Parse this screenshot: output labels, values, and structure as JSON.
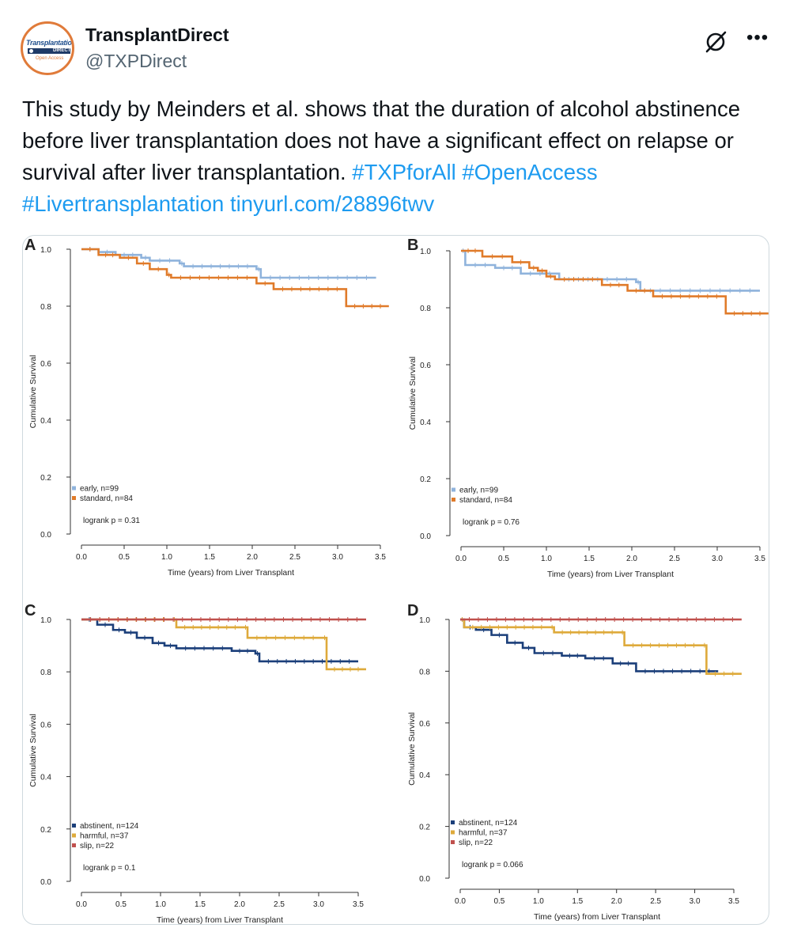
{
  "account": {
    "name": "TransplantDirect",
    "handle": "@TXPDirect",
    "avatar": {
      "line1": "Transplantation",
      "line2": "DIRECT",
      "line3": "Open Access"
    }
  },
  "tweet": {
    "text": "This study by Meinders et al. shows that the duration of alcohol abstinence before liver transplantation does not have a significant effect on relapse or survival after liver transplantation.",
    "hashtags": [
      "#TXPforAll",
      "#OpenAccess",
      "#Livertransplantation"
    ],
    "link": "tinyurl.com/28896twv"
  },
  "icons": {
    "grok": "grok-icon",
    "more": "more-icon"
  },
  "colors": {
    "early": "#8fb3dc",
    "standard": "#e07b2a",
    "abstinent": "#1b3f7a",
    "harmful": "#deaa3b",
    "slip": "#c0504d",
    "link": "#1d9bf0"
  },
  "chart_data": [
    {
      "panel": "A",
      "type": "line",
      "xlabel": "Time (years) from Liver Transplant",
      "ylabel": "Cumulative Survival",
      "xlim": [
        0,
        3.5
      ],
      "ylim": [
        0,
        1
      ],
      "xticks": [
        "0.0",
        "0.5",
        "1.0",
        "1.5",
        "2.0",
        "2.5",
        "3.0",
        "3.5"
      ],
      "yticks": [
        "0.0",
        "0.2",
        "0.4",
        "0.6",
        "0.8",
        "1.0"
      ],
      "logrank": "logrank p =  0.31",
      "series": [
        {
          "name": "early, n=99",
          "color": "#8fb3dc",
          "points": [
            [
              0,
              1
            ],
            [
              0.2,
              0.99
            ],
            [
              0.4,
              0.98
            ],
            [
              0.7,
              0.97
            ],
            [
              0.8,
              0.96
            ],
            [
              1.15,
              0.95
            ],
            [
              1.2,
              0.94
            ],
            [
              2.05,
              0.93
            ],
            [
              2.1,
              0.9
            ],
            [
              3.45,
              0.9
            ]
          ]
        },
        {
          "name": "standard, n=84",
          "color": "#e07b2a",
          "points": [
            [
              0,
              1
            ],
            [
              0.2,
              0.98
            ],
            [
              0.45,
              0.97
            ],
            [
              0.65,
              0.95
            ],
            [
              0.8,
              0.93
            ],
            [
              1.0,
              0.91
            ],
            [
              1.05,
              0.9
            ],
            [
              2.05,
              0.88
            ],
            [
              2.25,
              0.86
            ],
            [
              3.1,
              0.8
            ],
            [
              3.6,
              0.8
            ]
          ]
        }
      ]
    },
    {
      "panel": "B",
      "type": "line",
      "xlabel": "Time (years) from Liver Transplant",
      "ylabel": "Cumulative Survival",
      "xlim": [
        0,
        3.5
      ],
      "ylim": [
        0,
        1
      ],
      "xticks": [
        "0.0",
        "0.5",
        "1.0",
        "1.5",
        "2.0",
        "2.5",
        "3.0",
        "3.5"
      ],
      "yticks": [
        "0.0",
        "0.2",
        "0.4",
        "0.6",
        "0.8",
        "1.0"
      ],
      "logrank": "logrank p =  0.76",
      "series": [
        {
          "name": "early, n=99",
          "color": "#8fb3dc",
          "points": [
            [
              0,
              1
            ],
            [
              0.05,
              0.95
            ],
            [
              0.4,
              0.94
            ],
            [
              0.7,
              0.92
            ],
            [
              1.15,
              0.9
            ],
            [
              2.05,
              0.89
            ],
            [
              2.1,
              0.86
            ],
            [
              3.5,
              0.86
            ]
          ]
        },
        {
          "name": "standard, n=84",
          "color": "#e07b2a",
          "points": [
            [
              0,
              1
            ],
            [
              0.25,
              0.98
            ],
            [
              0.6,
              0.96
            ],
            [
              0.8,
              0.94
            ],
            [
              0.9,
              0.93
            ],
            [
              1.0,
              0.91
            ],
            [
              1.1,
              0.9
            ],
            [
              1.65,
              0.88
            ],
            [
              1.95,
              0.86
            ],
            [
              2.25,
              0.84
            ],
            [
              3.1,
              0.78
            ],
            [
              3.6,
              0.78
            ]
          ]
        }
      ]
    },
    {
      "panel": "C",
      "type": "line",
      "xlabel": "Time (years) from Liver Transplant",
      "ylabel": "Cumulative Survival",
      "xlim": [
        0,
        3.5
      ],
      "ylim": [
        0,
        1
      ],
      "xticks": [
        "0.0",
        "0.5",
        "1.0",
        "1.5",
        "2.0",
        "2.5",
        "3.0",
        "3.5"
      ],
      "yticks": [
        "0.0",
        "0.2",
        "0.4",
        "0.6",
        "0.8",
        "1.0"
      ],
      "logrank": "logrank p =  0.1",
      "series": [
        {
          "name": "abstinent, n=124",
          "color": "#1b3f7a",
          "points": [
            [
              0,
              1
            ],
            [
              0.2,
              0.98
            ],
            [
              0.4,
              0.96
            ],
            [
              0.55,
              0.95
            ],
            [
              0.7,
              0.93
            ],
            [
              0.9,
              0.91
            ],
            [
              1.05,
              0.9
            ],
            [
              1.2,
              0.89
            ],
            [
              1.9,
              0.88
            ],
            [
              2.2,
              0.87
            ],
            [
              2.25,
              0.84
            ],
            [
              3.5,
              0.84
            ]
          ]
        },
        {
          "name": "harmful, n=37",
          "color": "#deaa3b",
          "points": [
            [
              0,
              1
            ],
            [
              1.15,
              1.0
            ],
            [
              1.2,
              0.97
            ],
            [
              2.05,
              0.97
            ],
            [
              2.1,
              0.93
            ],
            [
              3.05,
              0.93
            ],
            [
              3.1,
              0.81
            ],
            [
              3.6,
              0.81
            ]
          ]
        },
        {
          "name": "slip, n=22",
          "color": "#c0504d",
          "points": [
            [
              0,
              1
            ],
            [
              3.6,
              1
            ]
          ]
        }
      ]
    },
    {
      "panel": "D",
      "type": "line",
      "xlabel": "Time (years) from Liver Transplant",
      "ylabel": "Cumulative Survival",
      "xlim": [
        0,
        3.5
      ],
      "ylim": [
        0,
        1
      ],
      "xticks": [
        "0.0",
        "0.5",
        "1.0",
        "1.5",
        "2.0",
        "2.5",
        "3.0",
        "3.5"
      ],
      "yticks": [
        "0.0",
        "0.2",
        "0.4",
        "0.6",
        "0.8",
        "1.0"
      ],
      "logrank": "logrank p =  0.066",
      "series": [
        {
          "name": "abstinent, n=124",
          "color": "#1b3f7a",
          "points": [
            [
              0,
              1
            ],
            [
              0.05,
              0.97
            ],
            [
              0.2,
              0.96
            ],
            [
              0.4,
              0.94
            ],
            [
              0.6,
              0.91
            ],
            [
              0.8,
              0.89
            ],
            [
              0.95,
              0.87
            ],
            [
              1.3,
              0.86
            ],
            [
              1.6,
              0.85
            ],
            [
              1.95,
              0.83
            ],
            [
              2.25,
              0.8
            ],
            [
              3.3,
              0.8
            ]
          ]
        },
        {
          "name": "harmful, n=37",
          "color": "#deaa3b",
          "points": [
            [
              0,
              1
            ],
            [
              0.05,
              0.97
            ],
            [
              1.15,
              0.97
            ],
            [
              1.2,
              0.95
            ],
            [
              2.05,
              0.95
            ],
            [
              2.1,
              0.9
            ],
            [
              3.1,
              0.9
            ],
            [
              3.15,
              0.79
            ],
            [
              3.6,
              0.79
            ]
          ]
        },
        {
          "name": "slip, n=22",
          "color": "#c0504d",
          "points": [
            [
              0,
              1
            ],
            [
              3.6,
              1
            ]
          ]
        }
      ]
    }
  ]
}
